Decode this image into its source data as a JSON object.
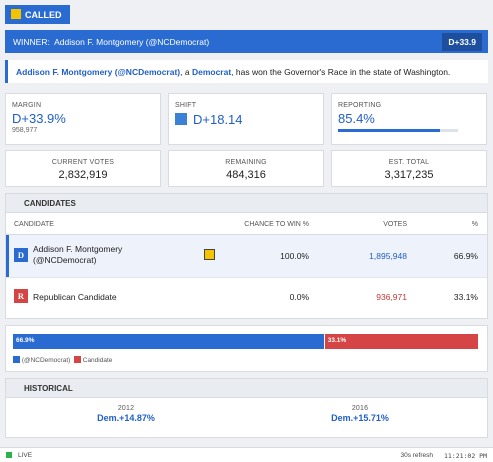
{
  "badge": "CALLED",
  "winner_bar": {
    "label": "WINNER:",
    "name": "Addison F. Montgomery (@NCDemocrat)",
    "margin": "D+33.9"
  },
  "sentence": {
    "name": "Addison F. Montgomery (@NCDemocrat)",
    "a": ", a ",
    "party": "Democrat",
    "rest": ", has won the Governor's Race in the state of Washington."
  },
  "stats": {
    "margin": {
      "label": "MARGIN",
      "value": "D+33.9%",
      "sub": "958,977"
    },
    "shift": {
      "label": "SHIFT",
      "value": "D+18.14"
    },
    "reporting": {
      "label": "REPORTING",
      "value": 85.4,
      "value_label": "85.4%"
    }
  },
  "totals": [
    {
      "label": "CURRENT VOTES",
      "value": "2,832,919"
    },
    {
      "label": "REMAINING",
      "value": "484,316"
    },
    {
      "label": "EST. TOTAL",
      "value": "3,317,235"
    }
  ],
  "candidates": {
    "title": "CANDIDATES",
    "columns": [
      "CANDIDATE",
      "CHANCE TO WIN %",
      "VOTES",
      "%"
    ],
    "rows": [
      {
        "party": "D",
        "name": "Addison F. Montgomery (@NCDemocrat)",
        "chance": "100.0%",
        "votes": "1,895,948",
        "pct": "66.9%"
      },
      {
        "party": "R",
        "name": "Republican Candidate",
        "chance": "0.0%",
        "votes": "936,971",
        "pct": "33.1%"
      }
    ]
  },
  "bar": {
    "segments": [
      {
        "value": 66.9,
        "label": "66.9%"
      },
      {
        "value": 33.1,
        "label": "33.1%"
      }
    ],
    "legend": [
      "(@NCDemocrat)",
      "Candidate"
    ]
  },
  "historical": {
    "title": "HISTORICAL",
    "items": [
      {
        "year": "2012",
        "value": "Dem.+14.87%"
      },
      {
        "year": "2016",
        "value": "Dem.+15.71%"
      }
    ]
  },
  "footer": {
    "status": "LIVE",
    "refresh": "30s refresh",
    "time": "11:21:02 PM"
  }
}
